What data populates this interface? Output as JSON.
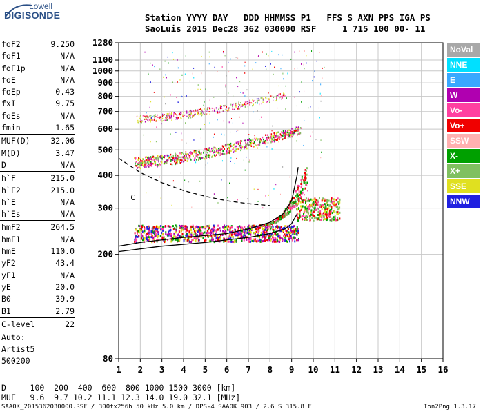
{
  "logo": {
    "line1": "Lowell",
    "line2": "DIGISONDE"
  },
  "header": {
    "row1": "Station YYYY DAY   DDD HHMMSS P1   FFS S AXN PPS IGA PS",
    "row2": "SaoLuis 2015 Dec28 362 030000 RSF     1 715 100 00- 11"
  },
  "params": [
    {
      "k": "foF2",
      "v": "9.250"
    },
    {
      "k": "foF1",
      "v": "N/A"
    },
    {
      "k": "foF1p",
      "v": "N/A"
    },
    {
      "k": "foE",
      "v": "N/A"
    },
    {
      "k": "foEp",
      "v": "0.43"
    },
    {
      "k": "fxI",
      "v": "9.75"
    },
    {
      "k": "foEs",
      "v": "N/A"
    },
    {
      "k": "fmin",
      "v": "1.65"
    },
    {
      "sep": true
    },
    {
      "k": "MUF(D)",
      "v": "32.06"
    },
    {
      "k": "M(D)",
      "v": "3.47"
    },
    {
      "k": "D",
      "v": "N/A"
    },
    {
      "sep": true
    },
    {
      "k": "h`F",
      "v": "215.0"
    },
    {
      "k": "h`F2",
      "v": "215.0"
    },
    {
      "k": "h`E",
      "v": "N/A"
    },
    {
      "k": "h`Es",
      "v": "N/A"
    },
    {
      "sep": true
    },
    {
      "k": "hmF2",
      "v": "264.5"
    },
    {
      "k": "hmF1",
      "v": "N/A"
    },
    {
      "k": "hmE",
      "v": "110.0"
    },
    {
      "k": "yF2",
      "v": "43.4"
    },
    {
      "k": "yF1",
      "v": "N/A"
    },
    {
      "k": "yE",
      "v": "20.0"
    },
    {
      "k": "B0",
      "v": "39.9"
    },
    {
      "k": "B1",
      "v": "2.79"
    },
    {
      "sep": true
    },
    {
      "k": "C-level",
      "v": "22"
    },
    {
      "sep": true
    }
  ],
  "auto": [
    "Auto:",
    "Artist5",
    "500200"
  ],
  "legend": [
    {
      "label": "NoVal",
      "color": "#a8a8a8"
    },
    {
      "label": "NNE",
      "color": "#00e0ff"
    },
    {
      "label": "E",
      "color": "#38a8ff"
    },
    {
      "label": "W",
      "color": "#b000b0"
    },
    {
      "label": "Vo-",
      "color": "#ff40a0"
    },
    {
      "label": "Vo+",
      "color": "#f00000"
    },
    {
      "label": "SSW",
      "color": "#ffb0b0"
    },
    {
      "label": "X-",
      "color": "#00a000"
    },
    {
      "label": "X+",
      "color": "#80c060"
    },
    {
      "label": "SSE",
      "color": "#e0e020"
    },
    {
      "label": "NNW",
      "color": "#2020e0"
    }
  ],
  "footer": {
    "row1": "D     100  200  400  600  800 1000 1500 3000 [km]",
    "row2": "MUF   9.6  9.7 10.2 11.1 12.3 14.0 19.0 32.1 [MHz]"
  },
  "bottom_line": "SAA0K_2015362030000.RSF / 300fx256h 50 kHz 5.0 km / DPS-4 SAA0K 903 / 2.6 S 315.8 E",
  "version": "Ion2Png 1.3.17",
  "chart_data": {
    "type": "scatter",
    "title": "",
    "xlabel": "",
    "ylabel": "",
    "xlim": [
      1,
      16
    ],
    "ylim": [
      80,
      1280
    ],
    "y_scale": "log",
    "x_ticks": [
      1,
      2,
      3,
      4,
      5,
      6,
      7,
      8,
      9,
      10,
      11,
      12,
      13,
      14,
      15,
      16
    ],
    "y_ticks": [
      80,
      200,
      300,
      400,
      500,
      600,
      700,
      800,
      900,
      1000,
      1100,
      1280
    ],
    "grid": true,
    "clusters": [
      {
        "name": "O-trace",
        "freq_range": [
          1.7,
          9.3
        ],
        "height_range": [
          225,
          260
        ],
        "color": "#ff40a0"
      },
      {
        "name": "O-trace-cusp",
        "freq_range": [
          7.5,
          9.7
        ],
        "height_range": [
          260,
          430
        ],
        "color": "#00a000"
      },
      {
        "name": "X-trace",
        "freq_range": [
          9.2,
          11.2
        ],
        "height_range": [
          270,
          330
        ],
        "color": "#f00000"
      },
      {
        "name": "2-hop",
        "freq_range": [
          1.7,
          9.4
        ],
        "height_range": [
          450,
          650
        ],
        "color": "#ff40a0"
      },
      {
        "name": "3-hop",
        "freq_range": [
          1.8,
          8.7
        ],
        "height_range": [
          660,
          860
        ],
        "color": "#ff40a0"
      }
    ],
    "lines": [
      {
        "name": "electron-density-profile",
        "points": [
          [
            1,
            205
          ],
          [
            3,
            215
          ],
          [
            5,
            222
          ],
          [
            7,
            232
          ],
          [
            8,
            240
          ],
          [
            8.7,
            250
          ],
          [
            9.0,
            262
          ],
          [
            9.25,
            285
          ]
        ],
        "style": "solid"
      },
      {
        "name": "model-trace",
        "points": [
          [
            1,
            215
          ],
          [
            2,
            222
          ],
          [
            4,
            232
          ],
          [
            6,
            240
          ],
          [
            7,
            250
          ],
          [
            8,
            265
          ],
          [
            8.6,
            285
          ],
          [
            9.0,
            320
          ],
          [
            9.25,
            400
          ],
          [
            9.3,
            430
          ]
        ],
        "style": "solid"
      },
      {
        "name": "topside-extension",
        "points": [
          [
            1,
            465
          ],
          [
            2,
            410
          ],
          [
            3,
            375
          ],
          [
            4,
            350
          ],
          [
            5,
            333
          ],
          [
            6,
            320
          ],
          [
            7,
            312
          ],
          [
            8,
            307
          ]
        ],
        "style": "dashed"
      }
    ],
    "annotation": "C"
  }
}
